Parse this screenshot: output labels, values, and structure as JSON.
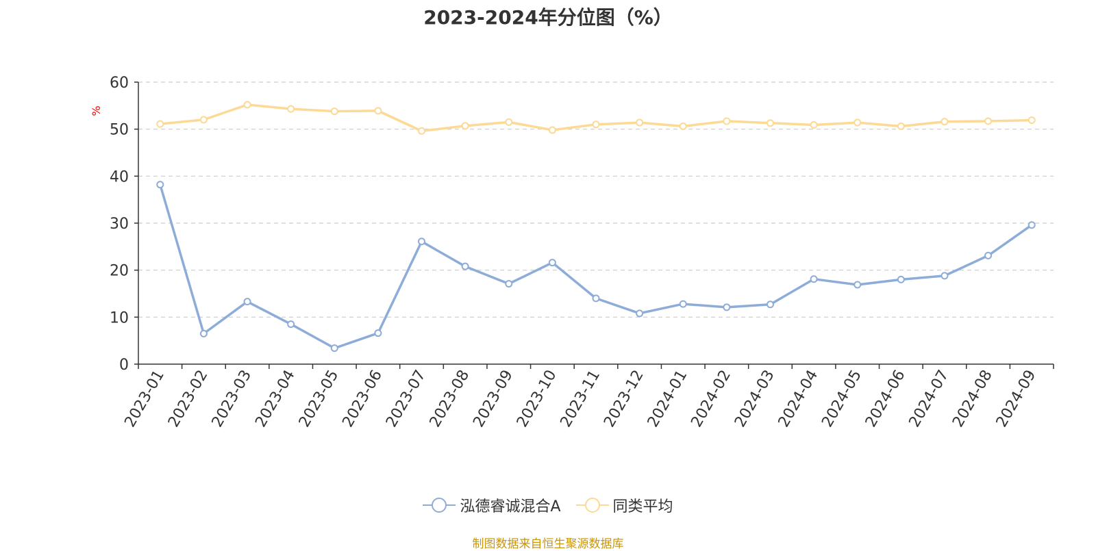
{
  "title": "2023-2024年分位图（%）",
  "source_note": "制图数据来自恒生聚源数据库",
  "colors": {
    "fund": "#8eacd8",
    "average": "#fcd994",
    "axis": "#333333",
    "grid": "#cccccc",
    "unit_label": "#ff0000",
    "source_text": "#c8960c"
  },
  "chart_data": {
    "type": "line",
    "title": "2023-2024年分位图（%）",
    "ylabel": "%",
    "xlabel": "",
    "ylim": [
      0,
      60
    ],
    "yticks": [
      0,
      10,
      20,
      30,
      40,
      50,
      60
    ],
    "grid": true,
    "legend_position": "bottom-center",
    "categories": [
      "2023-01",
      "2023-02",
      "2023-03",
      "2023-04",
      "2023-05",
      "2023-06",
      "2023-07",
      "2023-08",
      "2023-09",
      "2023-10",
      "2023-11",
      "2023-12",
      "2024-01",
      "2024-02",
      "2024-03",
      "2024-04",
      "2024-05",
      "2024-06",
      "2024-07",
      "2024-08",
      "2024-09"
    ],
    "series": [
      {
        "name": "泓德睿诚混合A",
        "color": "#8eacd8",
        "values": [
          38.2,
          6.5,
          13.3,
          8.5,
          3.4,
          6.6,
          26.1,
          20.8,
          17.1,
          21.6,
          14.0,
          10.8,
          12.8,
          12.1,
          12.7,
          18.1,
          16.9,
          18.0,
          18.8,
          23.1,
          29.6
        ]
      },
      {
        "name": "同类平均",
        "color": "#fcd994",
        "values": [
          51.1,
          52.0,
          55.2,
          54.3,
          53.8,
          53.9,
          49.6,
          50.7,
          51.5,
          49.8,
          51.0,
          51.4,
          50.6,
          51.7,
          51.3,
          50.9,
          51.4,
          50.6,
          51.6,
          51.7,
          51.9
        ]
      }
    ]
  }
}
